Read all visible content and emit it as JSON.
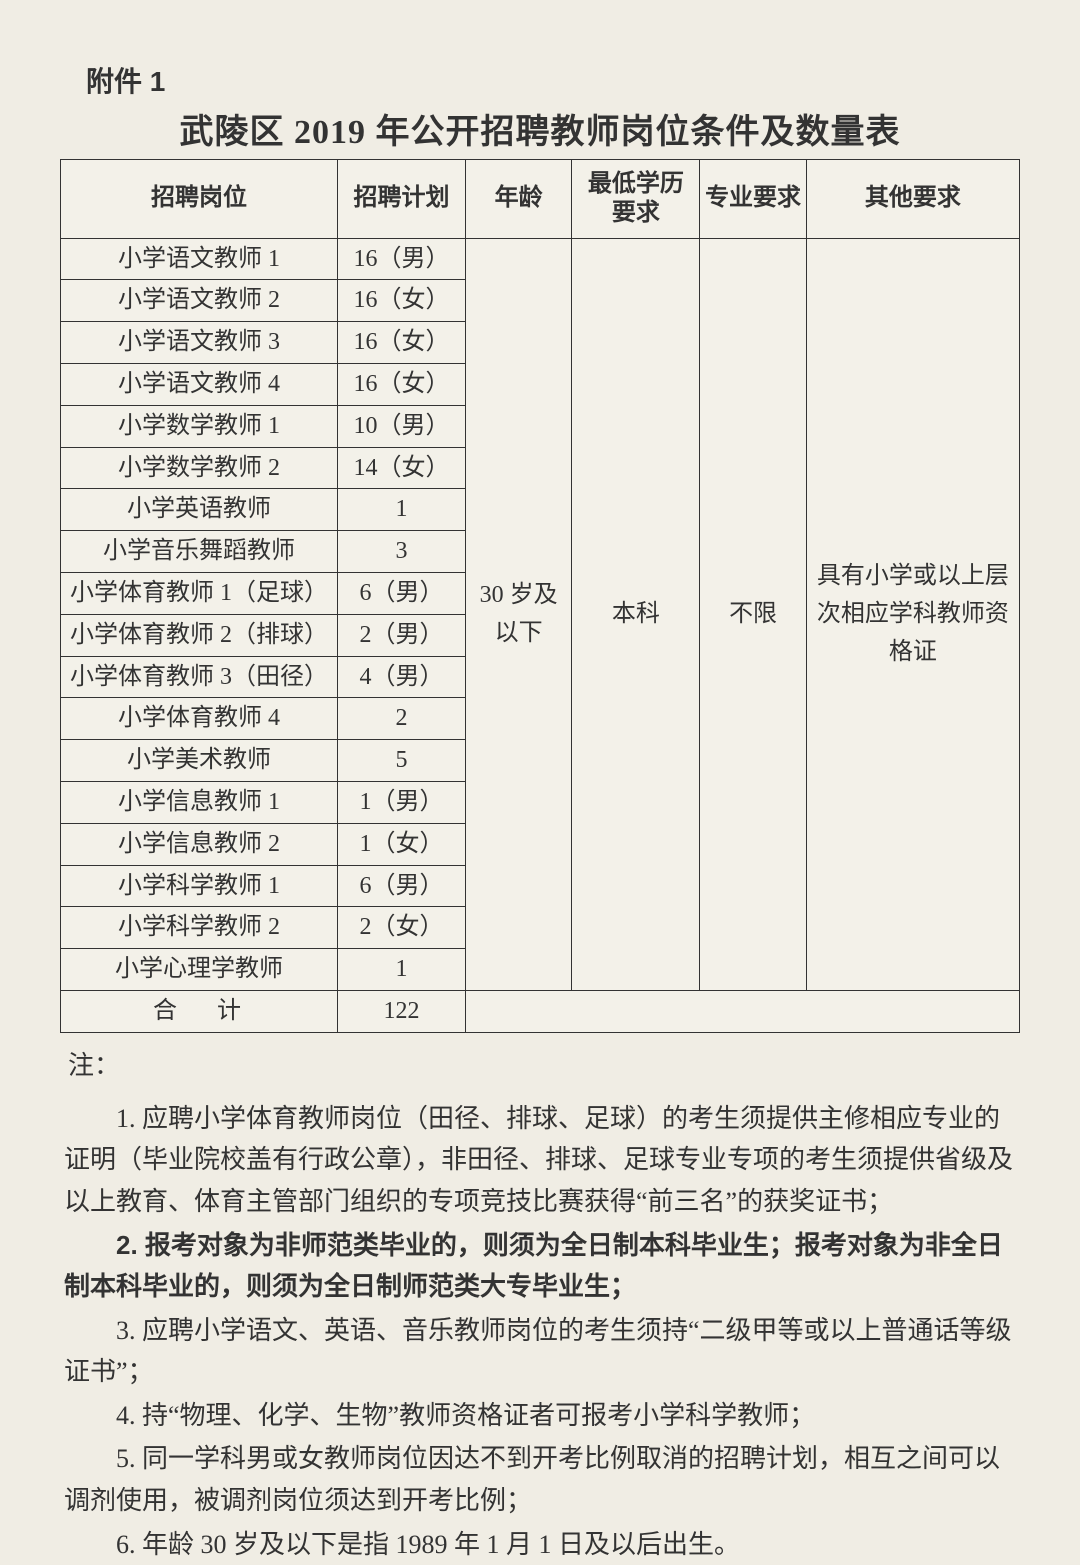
{
  "attachment_label": "附件 1",
  "title": "武陵区 2019 年公开招聘教师岗位条件及数量表",
  "table": {
    "headers": {
      "position": "招聘岗位",
      "plan": "招聘计划",
      "age": "年龄",
      "education": "最低学历要求",
      "major": "专业要求",
      "other": "其他要求"
    },
    "rows": [
      {
        "position": "小学语文教师 1",
        "plan": "16（男）"
      },
      {
        "position": "小学语文教师 2",
        "plan": "16（女）"
      },
      {
        "position": "小学语文教师 3",
        "plan": "16（女）"
      },
      {
        "position": "小学语文教师 4",
        "plan": "16（女）"
      },
      {
        "position": "小学数学教师 1",
        "plan": "10（男）"
      },
      {
        "position": "小学数学教师 2",
        "plan": "14（女）"
      },
      {
        "position": "小学英语教师",
        "plan": "1"
      },
      {
        "position": "小学音乐舞蹈教师",
        "plan": "3"
      },
      {
        "position": "小学体育教师 1（足球）",
        "plan": "6（男）"
      },
      {
        "position": "小学体育教师 2（排球）",
        "plan": "2（男）"
      },
      {
        "position": "小学体育教师 3（田径）",
        "plan": "4（男）"
      },
      {
        "position": "小学体育教师 4",
        "plan": "2"
      },
      {
        "position": "小学美术教师",
        "plan": "5"
      },
      {
        "position": "小学信息教师 1",
        "plan": "1（男）"
      },
      {
        "position": "小学信息教师 2",
        "plan": "1（女）"
      },
      {
        "position": "小学科学教师 1",
        "plan": "6（男）"
      },
      {
        "position": "小学科学教师 2",
        "plan": "2（女）"
      },
      {
        "position": "小学心理学教师",
        "plan": "1"
      }
    ],
    "merged": {
      "age": "30 岁及以下",
      "education": "本科",
      "major": "不限",
      "other": "具有小学或以上层次相应学科教师资格证"
    },
    "total_label": "合计",
    "total_value": "122"
  },
  "notes_label": "注：",
  "notes": [
    {
      "text": "1. 应聘小学体育教师岗位（田径、排球、足球）的考生须提供主修相应专业的证明（毕业院校盖有行政公章），非田径、排球、足球专业专项的考生须提供省级及以上教育、体育主管部门组织的专项竞技比赛获得“前三名”的获奖证书；",
      "bold": false
    },
    {
      "text": "2. 报考对象为非师范类毕业的，则须为全日制本科毕业生；报考对象为非全日制本科毕业的，则须为全日制师范类大专毕业生；",
      "bold": true
    },
    {
      "text": "3. 应聘小学语文、英语、音乐教师岗位的考生须持“二级甲等或以上普通话等级证书”；",
      "bold": false
    },
    {
      "text": "4. 持“物理、化学、生物”教师资格证者可报考小学科学教师；",
      "bold": false
    },
    {
      "text": "5. 同一学科男或女教师岗位因达不到开考比例取消的招聘计划，相互之间可以调剂使用，被调剂岗位须达到开考比例；",
      "bold": false
    },
    {
      "text": "6. 年龄 30 岁及以下是指 1989 年 1 月 1 日及以后出生。",
      "bold": false
    }
  ],
  "style": {
    "background": "#f0ede4",
    "border_color": "#333",
    "text_color": "#333",
    "title_fontsize": 34,
    "header_fontsize": 24,
    "cell_fontsize": 24,
    "notes_fontsize": 26
  }
}
